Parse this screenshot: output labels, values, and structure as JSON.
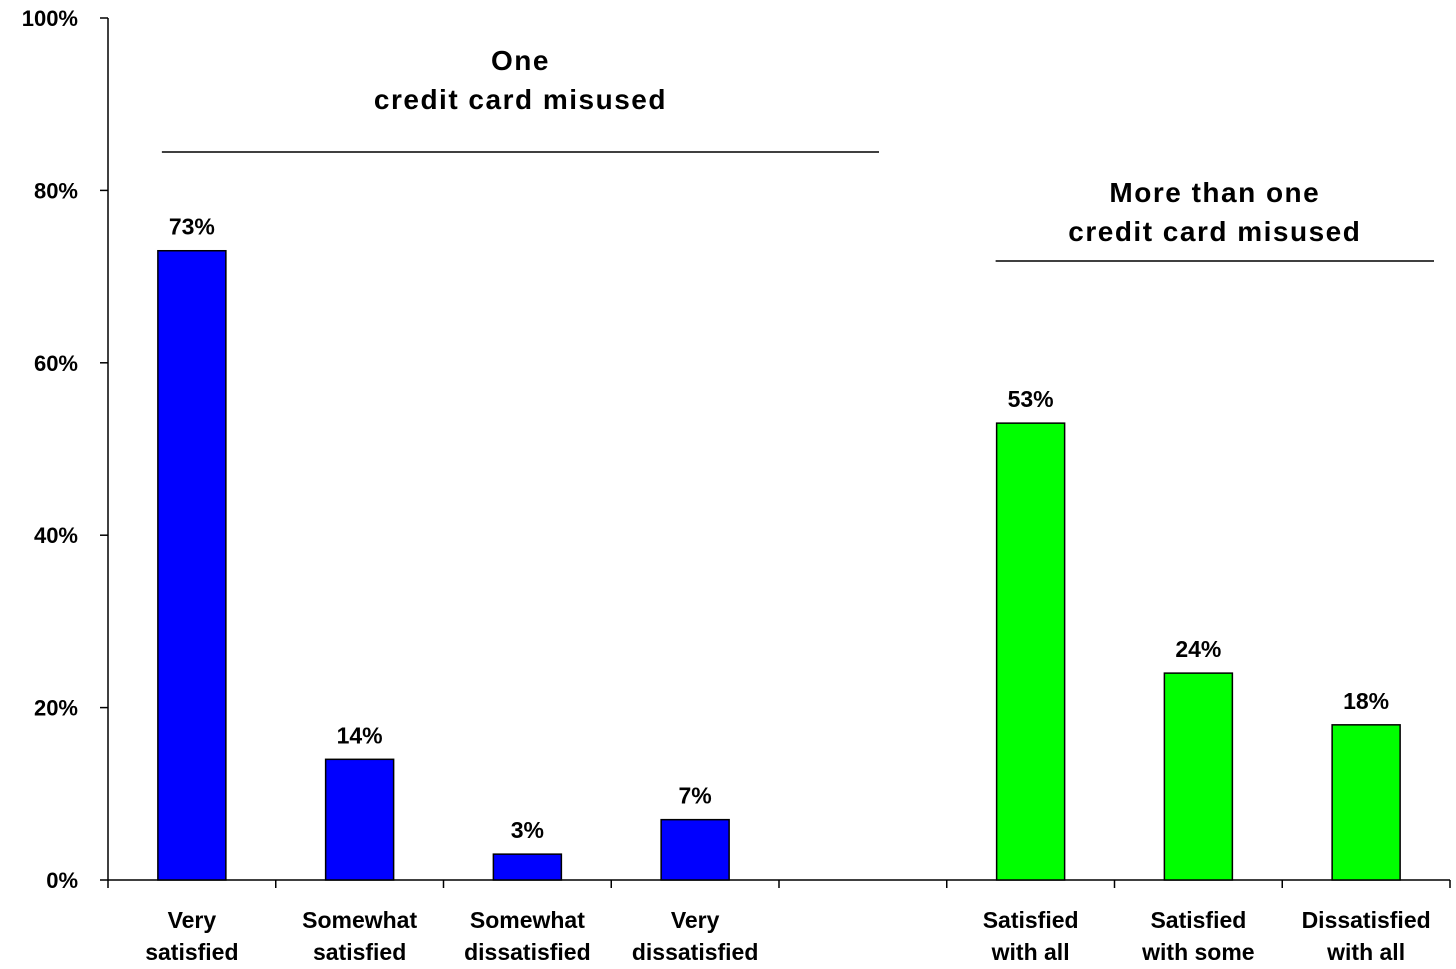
{
  "chart_data": {
    "type": "bar",
    "categories": [
      [
        "Very",
        "satisfied"
      ],
      [
        "Somewhat",
        "satisfied"
      ],
      [
        "Somewhat",
        "dissatisfied"
      ],
      [
        "Very",
        "dissatisfied"
      ],
      [
        "",
        ""
      ],
      [
        "Satisfied",
        "with all"
      ],
      [
        "Satisfied",
        "with some"
      ],
      [
        "Dissatisfied",
        "with all"
      ]
    ],
    "values": [
      73,
      14,
      3,
      7,
      null,
      53,
      24,
      18
    ],
    "value_labels": [
      "73%",
      "14%",
      "3%",
      "7%",
      "",
      "53%",
      "24%",
      "18%"
    ],
    "groups": [
      {
        "title_lines": [
          "One",
          "credit card misused"
        ],
        "category_indices": [
          0,
          1,
          2,
          3
        ],
        "color": "#0000FF"
      },
      {
        "title_lines": [
          "More than one",
          "credit card misused"
        ],
        "category_indices": [
          5,
          6,
          7
        ],
        "color": "#00FF00"
      }
    ],
    "ylim": [
      0,
      100
    ],
    "y_ticks": [
      "0%",
      "20%",
      "40%",
      "60%",
      "80%",
      "100%"
    ],
    "grid": false,
    "legend": "none",
    "title": "",
    "xlabel": "",
    "ylabel": ""
  }
}
